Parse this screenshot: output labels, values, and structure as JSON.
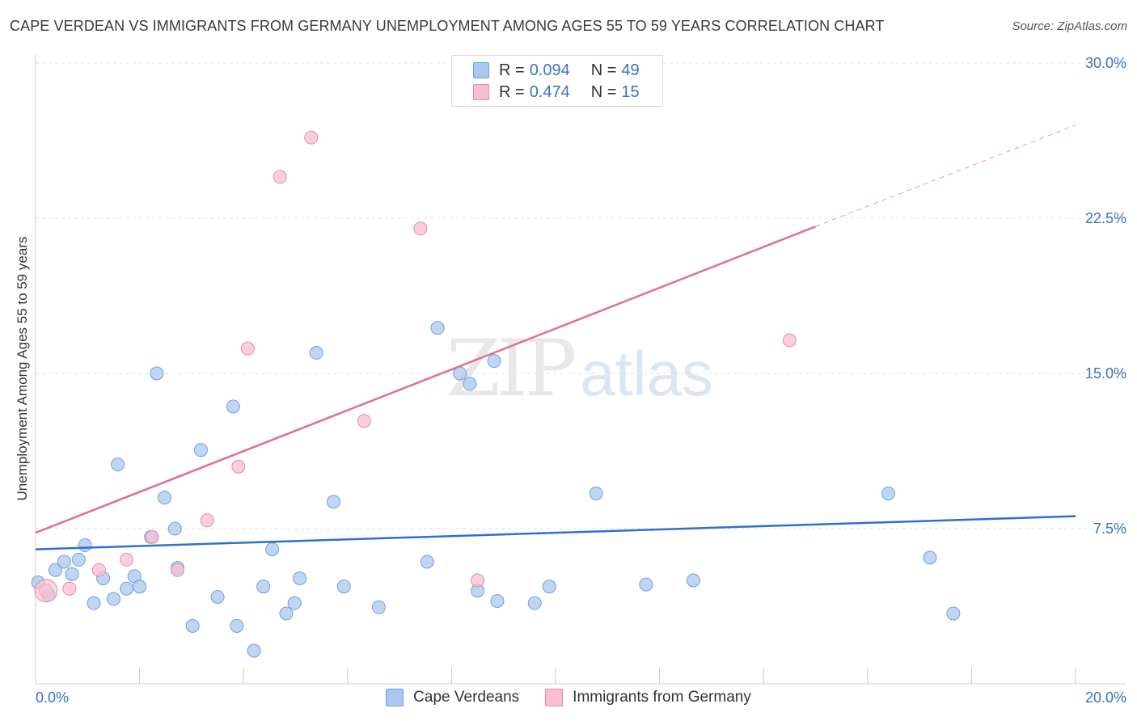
{
  "title": "CAPE VERDEAN VS IMMIGRANTS FROM GERMANY UNEMPLOYMENT AMONG AGES 55 TO 59 YEARS CORRELATION CHART",
  "source": "Source: ZipAtlas.com",
  "watermark": {
    "zip": "ZIP",
    "atlas": "atlas"
  },
  "legend_top": {
    "rows": [
      {
        "r_label": "R =",
        "r_value": "0.094",
        "n_label": "N =",
        "n_value": "49",
        "color": "#aac8ef",
        "border": "#6fa0dc"
      },
      {
        "r_label": "R =",
        "r_value": "0.474",
        "n_label": "N =",
        "n_value": "15",
        "color": "#f7bfd0",
        "border": "#e88aa8"
      }
    ]
  },
  "legend_bottom": [
    {
      "label": "Cape Verdeans",
      "color": "#aac8ef",
      "border": "#6fa0dc"
    },
    {
      "label": "Immigrants from Germany",
      "color": "#f7bfd0",
      "border": "#e88aa8"
    }
  ],
  "chart_data": {
    "type": "scatter",
    "title": "CAPE VERDEAN VS IMMIGRANTS FROM GERMANY UNEMPLOYMENT AMONG AGES 55 TO 59 YEARS CORRELATION CHART",
    "xlabel": "",
    "ylabel": "Unemployment Among Ages 55 to 59 years",
    "xlim": [
      0,
      20
    ],
    "ylim": [
      0,
      30
    ],
    "x_tick_labels": [
      "0.0%",
      "20.0%"
    ],
    "y_ticks": [
      7.5,
      15.0,
      22.5,
      30.0
    ],
    "y_tick_labels": [
      "7.5%",
      "15.0%",
      "22.5%",
      "30.0%"
    ],
    "grid": true,
    "series": [
      {
        "name": "Cape Verdeans",
        "color": "#aac8ef",
        "stroke": "#6fa0dc",
        "line_color": "#2f6fcc",
        "trend": {
          "x0": 0,
          "y0": 6.5,
          "x1": 20,
          "y1": 8.1
        },
        "points": [
          [
            0.05,
            4.9
          ],
          [
            0.25,
            4.3
          ],
          [
            0.38,
            5.5
          ],
          [
            0.55,
            5.9
          ],
          [
            0.7,
            5.3
          ],
          [
            0.83,
            6.0
          ],
          [
            0.95,
            6.7
          ],
          [
            1.12,
            3.9
          ],
          [
            1.3,
            5.1
          ],
          [
            1.5,
            4.1
          ],
          [
            1.58,
            10.6
          ],
          [
            1.75,
            4.6
          ],
          [
            1.9,
            5.2
          ],
          [
            2.0,
            4.7
          ],
          [
            2.22,
            7.1
          ],
          [
            2.33,
            15.0
          ],
          [
            2.48,
            9.0
          ],
          [
            2.68,
            7.5
          ],
          [
            2.73,
            5.6
          ],
          [
            3.02,
            2.8
          ],
          [
            3.18,
            11.3
          ],
          [
            3.5,
            4.2
          ],
          [
            3.8,
            13.4
          ],
          [
            3.87,
            2.8
          ],
          [
            4.2,
            1.6
          ],
          [
            4.38,
            4.7
          ],
          [
            4.55,
            6.5
          ],
          [
            4.82,
            3.4
          ],
          [
            4.98,
            3.9
          ],
          [
            5.08,
            5.1
          ],
          [
            5.4,
            16.0
          ],
          [
            5.73,
            8.8
          ],
          [
            5.93,
            4.7
          ],
          [
            6.6,
            3.7
          ],
          [
            7.53,
            5.9
          ],
          [
            7.73,
            17.2
          ],
          [
            8.16,
            15.0
          ],
          [
            8.35,
            14.5
          ],
          [
            8.5,
            4.5
          ],
          [
            8.82,
            15.6
          ],
          [
            8.88,
            4.0
          ],
          [
            9.6,
            3.9
          ],
          [
            9.88,
            4.7
          ],
          [
            10.78,
            9.2
          ],
          [
            11.74,
            4.8
          ],
          [
            12.65,
            5.0
          ],
          [
            16.4,
            9.2
          ],
          [
            17.2,
            6.1
          ],
          [
            17.65,
            3.4
          ]
        ]
      },
      {
        "name": "Immigrants from Germany",
        "color": "#f7bfd0",
        "stroke": "#e88aa8",
        "line_color": "#e06d94",
        "trend": {
          "x0": 0,
          "y0": 7.3,
          "x1": 15.0,
          "y1": 22.1
        },
        "trend_extension": {
          "x0": 15.0,
          "y0": 22.1,
          "x1": 20,
          "y1": 27.0
        },
        "points": [
          [
            0.2,
            4.5
          ],
          [
            0.65,
            4.6
          ],
          [
            1.22,
            5.5
          ],
          [
            1.75,
            6.0
          ],
          [
            2.24,
            7.1
          ],
          [
            2.73,
            5.5
          ],
          [
            3.3,
            7.9
          ],
          [
            3.9,
            10.5
          ],
          [
            4.08,
            16.2
          ],
          [
            4.7,
            24.5
          ],
          [
            5.3,
            26.4
          ],
          [
            6.32,
            12.7
          ],
          [
            7.4,
            22.0
          ],
          [
            8.5,
            5.0
          ],
          [
            14.5,
            16.6
          ]
        ]
      }
    ]
  }
}
